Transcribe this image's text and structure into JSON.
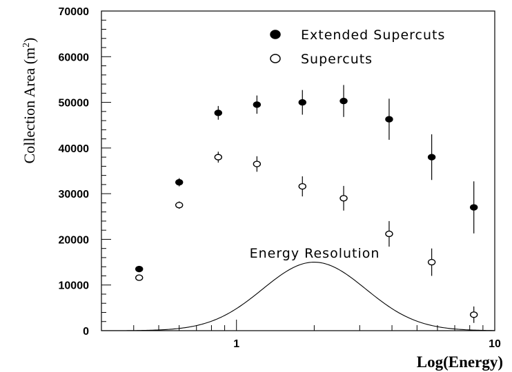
{
  "chart_data": {
    "type": "scatter",
    "xscale": "log",
    "xlim": [
      0.3,
      10
    ],
    "ylim": [
      0,
      70000
    ],
    "xlabel": "Log(Energy)",
    "ylabel": "Collection Area (m²)",
    "ylabel_parts": {
      "main": "Collection Area (m",
      "sup": "2",
      "close": ")"
    },
    "x_ticks": [
      {
        "value": 1,
        "label": "1"
      },
      {
        "value": 10,
        "label": "10"
      }
    ],
    "y_ticks": [
      0,
      10000,
      20000,
      30000,
      40000,
      50000,
      60000,
      70000
    ],
    "grid": false,
    "legend_position": "top-right",
    "series": [
      {
        "name": "Extended Supercuts",
        "marker": "filled-circle",
        "color": "#000000",
        "points": [
          {
            "x": 0.42,
            "y": 13500,
            "err": 300
          },
          {
            "x": 0.6,
            "y": 32500,
            "err": 900
          },
          {
            "x": 0.85,
            "y": 47700,
            "err": 1500
          },
          {
            "x": 1.2,
            "y": 49500,
            "err": 2000
          },
          {
            "x": 1.8,
            "y": 50000,
            "err": 2700
          },
          {
            "x": 2.6,
            "y": 50300,
            "err": 3500
          },
          {
            "x": 3.9,
            "y": 46300,
            "err": 4500
          },
          {
            "x": 5.7,
            "y": 38000,
            "err": 5000
          },
          {
            "x": 8.3,
            "y": 27000,
            "err": 5700
          }
        ]
      },
      {
        "name": "Supercuts",
        "marker": "open-circle",
        "color": "#000000",
        "points": [
          {
            "x": 0.42,
            "y": 11600,
            "err": 200
          },
          {
            "x": 0.6,
            "y": 27500,
            "err": 800
          },
          {
            "x": 0.85,
            "y": 38000,
            "err": 1200
          },
          {
            "x": 1.2,
            "y": 36500,
            "err": 1700
          },
          {
            "x": 1.8,
            "y": 31600,
            "err": 2200
          },
          {
            "x": 2.6,
            "y": 29000,
            "err": 2700
          },
          {
            "x": 3.9,
            "y": 21200,
            "err": 2800
          },
          {
            "x": 5.7,
            "y": 15000,
            "err": 3000
          },
          {
            "x": 8.3,
            "y": 3500,
            "err": 1800
          }
        ]
      }
    ],
    "curve": {
      "label": "Energy Resolution",
      "shape": "gaussian-in-log-x",
      "center_x": 2.0,
      "peak_y": 15000,
      "sigma_log10": 0.2
    }
  }
}
